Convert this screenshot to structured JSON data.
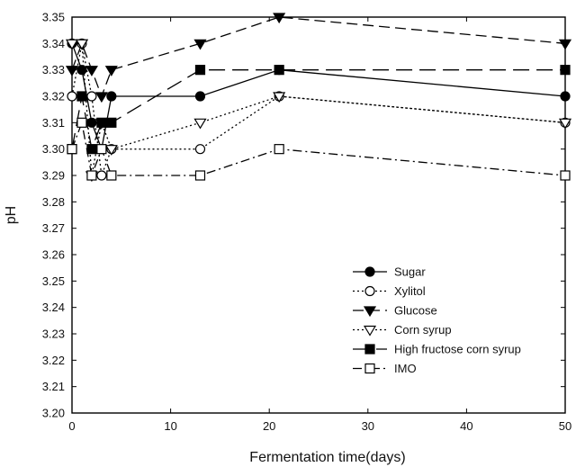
{
  "chart_data": {
    "type": "line",
    "title": "",
    "xlabel": "Fermentation time(days)",
    "ylabel": "pH",
    "xlim": [
      0,
      50
    ],
    "ylim": [
      3.2,
      3.35
    ],
    "xticks": [
      "0",
      "10",
      "20",
      "30",
      "40",
      "50"
    ],
    "yticks": [
      "3.20",
      "3.21",
      "3.22",
      "3.23",
      "3.24",
      "3.25",
      "3.26",
      "3.27",
      "3.28",
      "3.29",
      "3.30",
      "3.31",
      "3.32",
      "3.33",
      "3.34",
      "3.35"
    ],
    "grid": false,
    "legend_position": "bottom-right",
    "series": [
      {
        "name": "Sugar",
        "marker": "filled-circle",
        "line_style": "solid",
        "x": [
          0,
          1,
          2,
          3,
          4,
          13,
          21,
          50
        ],
        "y": [
          3.34,
          3.33,
          3.31,
          3.3,
          3.32,
          3.32,
          3.33,
          3.32
        ]
      },
      {
        "name": "Xylitol",
        "marker": "open-circle",
        "line_style": "dotted",
        "x": [
          0,
          1,
          2,
          3,
          4,
          13,
          21,
          50
        ],
        "y": [
          3.32,
          3.34,
          3.32,
          3.29,
          3.3,
          3.3,
          3.32,
          3.31
        ]
      },
      {
        "name": "Glucose",
        "marker": "filled-triangle-down",
        "line_style": "dashed",
        "x": [
          0,
          1,
          2,
          3,
          4,
          13,
          21,
          50
        ],
        "y": [
          3.33,
          3.34,
          3.33,
          3.32,
          3.33,
          3.34,
          3.35,
          3.34
        ]
      },
      {
        "name": "Corn syrup",
        "marker": "open-triangle-down",
        "line_style": "dotted",
        "x": [
          0,
          1,
          2,
          3,
          4,
          13,
          21,
          50
        ],
        "y": [
          3.34,
          3.34,
          3.29,
          3.31,
          3.3,
          3.31,
          3.32,
          3.31
        ]
      },
      {
        "name": "High fructose corn syrup",
        "marker": "filled-square",
        "line_style": "long-dash",
        "x": [
          0,
          1,
          2,
          3,
          4,
          13,
          21,
          50
        ],
        "y": [
          3.3,
          3.32,
          3.3,
          3.31,
          3.31,
          3.33,
          3.33,
          3.33
        ]
      },
      {
        "name": "IMO",
        "marker": "open-square",
        "line_style": "dash-dot",
        "x": [
          0,
          1,
          2,
          3,
          4,
          13,
          21,
          50
        ],
        "y": [
          3.3,
          3.31,
          3.29,
          3.3,
          3.29,
          3.29,
          3.3,
          3.29
        ]
      }
    ]
  }
}
